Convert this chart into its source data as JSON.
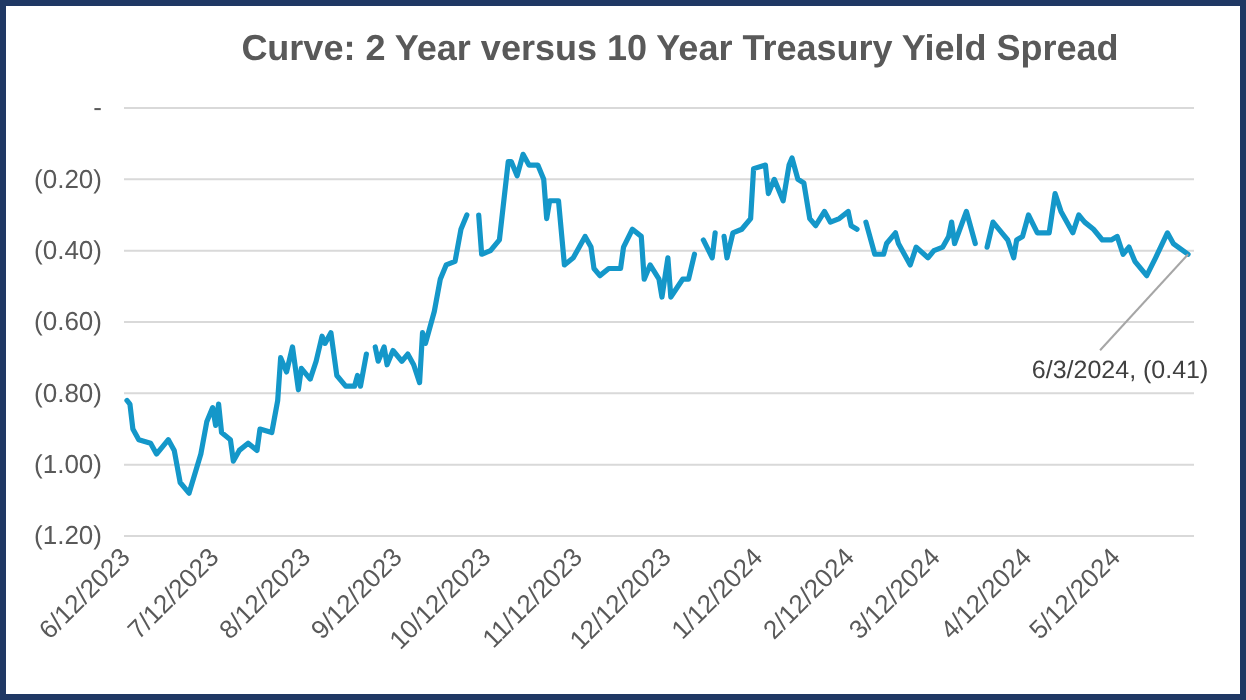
{
  "chart_data": {
    "type": "line",
    "title": "Curve: 2 Year versus 10 Year Treasury Yield Spread",
    "x": [
      "2023-06-10",
      "2023-06-11",
      "2023-06-12",
      "2023-06-14",
      "2023-06-18",
      "2023-06-20",
      "2023-06-22",
      "2023-06-24",
      "2023-06-26",
      "2023-06-28",
      "2023-07-01",
      "2023-07-05",
      "2023-07-07",
      "2023-07-09",
      "2023-07-10",
      "2023-07-11",
      "2023-07-12",
      "2023-07-15",
      "2023-07-16",
      "2023-07-18",
      "2023-07-21",
      "2023-07-24",
      "2023-07-25",
      "2023-07-29",
      "2023-07-31",
      "2023-08-01",
      "2023-08-03",
      "2023-08-05",
      "2023-08-07",
      "2023-08-08",
      "2023-08-11",
      "2023-08-13",
      "2023-08-15",
      "2023-08-16",
      "2023-08-18",
      "2023-08-20",
      "2023-08-23",
      "2023-08-26",
      "2023-08-27",
      "2023-08-28",
      "2023-08-30",
      "2023-09-01",
      "2023-09-02",
      "2023-09-03",
      "2023-09-05",
      "2023-09-06",
      "2023-09-08",
      "2023-09-11",
      "2023-09-13",
      "2023-09-15",
      "2023-09-17",
      "2023-09-18",
      "2023-09-19",
      "2023-09-22",
      "2023-09-24",
      "2023-09-26",
      "2023-09-29",
      "2023-10-01",
      "2023-10-03",
      "2023-10-05",
      "2023-10-07",
      "2023-10-08",
      "2023-10-11",
      "2023-10-14",
      "2023-10-17",
      "2023-10-18",
      "2023-10-20",
      "2023-10-22",
      "2023-10-24",
      "2023-10-27",
      "2023-10-29",
      "2023-10-30",
      "2023-10-31",
      "2023-11-03",
      "2023-11-05",
      "2023-11-08",
      "2023-11-12",
      "2023-11-14",
      "2023-11-15",
      "2023-11-17",
      "2023-11-20",
      "2023-11-24",
      "2023-11-25",
      "2023-11-28",
      "2023-12-01",
      "2023-12-02",
      "2023-12-04",
      "2023-12-07",
      "2023-12-08",
      "2023-12-10",
      "2023-12-11",
      "2023-12-15",
      "2023-12-17",
      "2023-12-19",
      "2023-12-21",
      "2023-12-22",
      "2023-12-25",
      "2023-12-26",
      "2023-12-28",
      "2023-12-29",
      "2023-12-30",
      "2024-01-01",
      "2024-01-04",
      "2024-01-07",
      "2024-01-08",
      "2024-01-12",
      "2024-01-13",
      "2024-01-15",
      "2024-01-18",
      "2024-01-20",
      "2024-01-21",
      "2024-01-23",
      "2024-01-25",
      "2024-01-27",
      "2024-01-29",
      "2024-02-01",
      "2024-02-03",
      "2024-02-06",
      "2024-02-09",
      "2024-02-10",
      "2024-02-12",
      "2024-02-14",
      "2024-02-15",
      "2024-02-18",
      "2024-02-21",
      "2024-02-22",
      "2024-02-25",
      "2024-02-26",
      "2024-03-01",
      "2024-03-03",
      "2024-03-07",
      "2024-03-09",
      "2024-03-12",
      "2024-03-14",
      "2024-03-15",
      "2024-03-16",
      "2024-03-20",
      "2024-03-23",
      "2024-03-25",
      "2024-03-27",
      "2024-03-29",
      "2024-04-01",
      "2024-04-03",
      "2024-04-05",
      "2024-04-06",
      "2024-04-08",
      "2024-04-10",
      "2024-04-13",
      "2024-04-17",
      "2024-04-19",
      "2024-04-21",
      "2024-04-25",
      "2024-04-27",
      "2024-04-29",
      "2024-05-02",
      "2024-05-05",
      "2024-05-08",
      "2024-05-10",
      "2024-05-12",
      "2024-05-14",
      "2024-05-16",
      "2024-05-20",
      "2024-05-23",
      "2024-05-27",
      "2024-05-29",
      "2024-06-03"
    ],
    "series": [
      {
        "color": "#1497c9",
        "values": [
          -0.82,
          -0.83,
          -0.9,
          -0.93,
          -0.94,
          -0.97,
          -0.95,
          -0.93,
          -0.96,
          -1.05,
          -1.08,
          -0.97,
          -0.88,
          -0.84,
          -0.89,
          -0.83,
          -0.91,
          -0.93,
          -0.99,
          -0.96,
          -0.94,
          -0.96,
          -0.9,
          -0.91,
          -0.82,
          -0.7,
          -0.74,
          -0.67,
          -0.79,
          -0.73,
          -0.76,
          -0.71,
          -0.64,
          -0.66,
          -0.63,
          -0.75,
          -0.78,
          -0.78,
          -0.75,
          -0.78,
          -0.69,
          null,
          -0.67,
          -0.71,
          -0.67,
          -0.72,
          -0.68,
          -0.71,
          -0.69,
          -0.72,
          -0.77,
          -0.63,
          -0.66,
          -0.57,
          -0.48,
          -0.44,
          -0.43,
          -0.34,
          -0.3,
          null,
          -0.3,
          -0.41,
          -0.4,
          -0.37,
          -0.15,
          -0.15,
          -0.19,
          -0.13,
          -0.16,
          -0.16,
          -0.2,
          -0.31,
          -0.26,
          -0.26,
          -0.44,
          -0.42,
          -0.36,
          -0.39,
          -0.45,
          -0.47,
          -0.45,
          -0.45,
          -0.39,
          -0.34,
          -0.36,
          -0.48,
          -0.44,
          -0.48,
          -0.53,
          -0.42,
          -0.53,
          -0.48,
          -0.48,
          -0.41,
          null,
          -0.37,
          -0.42,
          -0.35,
          null,
          -0.36,
          -0.42,
          -0.35,
          -0.34,
          -0.31,
          -0.17,
          -0.16,
          -0.24,
          -0.2,
          -0.26,
          -0.16,
          -0.14,
          -0.2,
          -0.21,
          -0.31,
          -0.33,
          -0.29,
          -0.32,
          -0.31,
          -0.29,
          -0.33,
          -0.34,
          null,
          -0.32,
          -0.41,
          -0.41,
          -0.38,
          -0.35,
          -0.38,
          -0.44,
          -0.39,
          -0.42,
          -0.4,
          -0.39,
          -0.36,
          -0.32,
          -0.38,
          -0.29,
          -0.38,
          null,
          -0.39,
          -0.32,
          -0.35,
          -0.37,
          -0.42,
          -0.37,
          -0.36,
          -0.3,
          -0.35,
          -0.35,
          -0.24,
          -0.29,
          -0.35,
          -0.3,
          -0.32,
          -0.34,
          -0.37,
          -0.37,
          -0.36,
          -0.41,
          -0.39,
          -0.43,
          -0.47,
          -0.42,
          -0.35,
          -0.38,
          -0.41
        ]
      }
    ],
    "xlim": [
      "2023-06-09",
      "2024-06-05"
    ],
    "xticks": [
      {
        "value": "2023-06-12",
        "label": "6/12/2023"
      },
      {
        "value": "2023-07-12",
        "label": "7/12/2023"
      },
      {
        "value": "2023-08-12",
        "label": "8/12/2023"
      },
      {
        "value": "2023-09-12",
        "label": "9/12/2023"
      },
      {
        "value": "2023-10-12",
        "label": "10/12/2023"
      },
      {
        "value": "2023-11-12",
        "label": "11/12/2023"
      },
      {
        "value": "2023-12-12",
        "label": "12/12/2023"
      },
      {
        "value": "2024-01-12",
        "label": "1/12/2024"
      },
      {
        "value": "2024-02-12",
        "label": "2/12/2024"
      },
      {
        "value": "2024-03-12",
        "label": "3/12/2024"
      },
      {
        "value": "2024-04-12",
        "label": "4/12/2024"
      },
      {
        "value": "2024-05-12",
        "label": "5/12/2024"
      }
    ],
    "ylim": [
      -1.2,
      0
    ],
    "yticks": [
      {
        "value": 0,
        "label": "-"
      },
      {
        "value": -0.2,
        "label": "(0.20)"
      },
      {
        "value": -0.4,
        "label": "(0.40)"
      },
      {
        "value": -0.6,
        "label": "(0.60)"
      },
      {
        "value": -0.8,
        "label": "(0.80)"
      },
      {
        "value": -1,
        "label": "(1.00)"
      },
      {
        "value": -1.2,
        "label": "(1.20)"
      }
    ],
    "grid": "y",
    "annotations": [
      {
        "text": "6/3/2024, (0.41)",
        "x": "2024-06-03",
        "y": -0.41
      }
    ]
  }
}
